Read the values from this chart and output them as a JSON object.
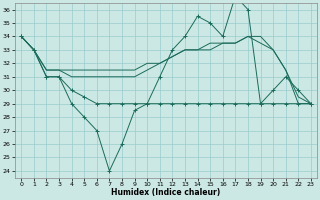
{
  "xlabel": "Humidex (Indice chaleur)",
  "xlim": [
    -0.5,
    23.5
  ],
  "ylim": [
    23.5,
    36.5
  ],
  "xticks": [
    0,
    1,
    2,
    3,
    4,
    5,
    6,
    7,
    8,
    9,
    10,
    11,
    12,
    13,
    14,
    15,
    16,
    17,
    18,
    19,
    20,
    21,
    22,
    23
  ],
  "yticks": [
    24,
    25,
    26,
    27,
    28,
    29,
    30,
    31,
    32,
    33,
    34,
    35,
    36
  ],
  "bg_color": "#cce8e4",
  "grid_color": "#99cccc",
  "line_color": "#1a6b5a",
  "line1_x": [
    0,
    1,
    2,
    3,
    4,
    5,
    6,
    7,
    8,
    9,
    10,
    11,
    12,
    13,
    14,
    15,
    16,
    17,
    18,
    19,
    20,
    21,
    22,
    23
  ],
  "line1_y": [
    34,
    33,
    31,
    31,
    29,
    28,
    27,
    24,
    26,
    28.5,
    29,
    31,
    33,
    34,
    35.5,
    35,
    34,
    37,
    36,
    29,
    30,
    31,
    30,
    29
  ],
  "line2_x": [
    0,
    1,
    2,
    3,
    4,
    5,
    6,
    7,
    8,
    9,
    10,
    11,
    12,
    13,
    14,
    15,
    16,
    17,
    18,
    19,
    20,
    21,
    22,
    23
  ],
  "line2_y": [
    34,
    33,
    31,
    31,
    30,
    29.5,
    29,
    29,
    29,
    29,
    29,
    29,
    29,
    29,
    29,
    29,
    29,
    29,
    29,
    29,
    29,
    29,
    29,
    29
  ],
  "line3_x": [
    0,
    1,
    2,
    3,
    4,
    5,
    6,
    7,
    8,
    9,
    10,
    11,
    12,
    13,
    14,
    15,
    16,
    17,
    18,
    19,
    20,
    21,
    22,
    23
  ],
  "line3_y": [
    34,
    33,
    31.5,
    31.5,
    31.5,
    31.5,
    31.5,
    31.5,
    31.5,
    31.5,
    32,
    32,
    32.5,
    33,
    33,
    33.5,
    33.5,
    33.5,
    34,
    34,
    33,
    31.5,
    29,
    29
  ],
  "line4_x": [
    0,
    1,
    2,
    3,
    4,
    5,
    6,
    7,
    8,
    9,
    10,
    11,
    12,
    13,
    14,
    15,
    16,
    17,
    18,
    19,
    20,
    21,
    22,
    23
  ],
  "line4_y": [
    34,
    33,
    31.5,
    31.5,
    31,
    31,
    31,
    31,
    31,
    31,
    31.5,
    32,
    32.5,
    33,
    33,
    33,
    33.5,
    33.5,
    34,
    33.5,
    33,
    31.5,
    29.5,
    29
  ]
}
